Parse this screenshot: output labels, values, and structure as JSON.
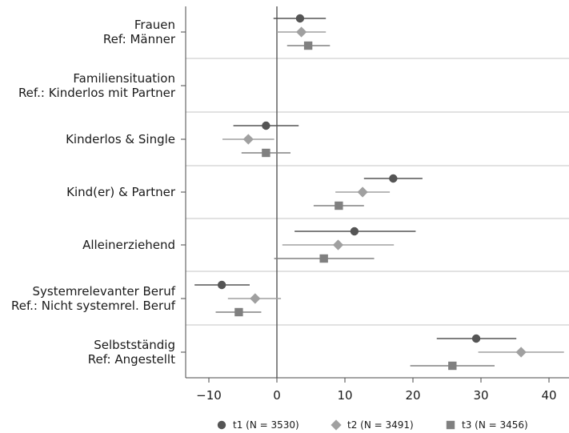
{
  "chart_data": {
    "type": "coefficient-plot",
    "title": "",
    "xlabel": "",
    "ylabel": "",
    "xlim": [
      -13,
      43
    ],
    "xticks": [
      -10,
      0,
      10,
      20,
      30,
      40
    ],
    "xtick_labels": [
      "−10",
      "0",
      "10",
      "20",
      "30",
      "40"
    ],
    "zero_line": 0,
    "grid": false,
    "legend_position": "bottom",
    "series": [
      {
        "name": "t1 (N = 3530)",
        "marker": "circle",
        "color": "#555555"
      },
      {
        "name": "t2 (N = 3491)",
        "marker": "diamond",
        "color": "#a0a0a0"
      },
      {
        "name": "t3 (N = 3456)",
        "marker": "square",
        "color": "#808080"
      }
    ],
    "groups": [
      {
        "lines": [
          "Frauen",
          "Ref: Männer"
        ],
        "estimates": [
          {
            "series": 0,
            "value": 3.4,
            "ci": [
              -0.5,
              7.2
            ]
          },
          {
            "series": 1,
            "value": 3.6,
            "ci": [
              0.0,
              7.2
            ]
          },
          {
            "series": 2,
            "value": 4.6,
            "ci": [
              1.5,
              7.8
            ]
          }
        ]
      },
      {
        "lines": [
          "Familiensituation",
          "Ref.: Kinderlos mit Partner"
        ],
        "estimates": []
      },
      {
        "lines": [
          "Kinderlos & Single"
        ],
        "estimates": [
          {
            "series": 0,
            "value": -1.6,
            "ci": [
              -6.4,
              3.2
            ]
          },
          {
            "series": 1,
            "value": -4.2,
            "ci": [
              -8.0,
              -0.4
            ]
          },
          {
            "series": 2,
            "value": -1.6,
            "ci": [
              -5.2,
              2.0
            ]
          }
        ]
      },
      {
        "lines": [
          "Kind(er) & Partner"
        ],
        "estimates": [
          {
            "series": 0,
            "value": 17.1,
            "ci": [
              12.8,
              21.4
            ]
          },
          {
            "series": 1,
            "value": 12.6,
            "ci": [
              8.6,
              16.6
            ]
          },
          {
            "series": 2,
            "value": 9.1,
            "ci": [
              5.4,
              12.8
            ]
          }
        ]
      },
      {
        "lines": [
          "Alleinerziehend"
        ],
        "estimates": [
          {
            "series": 0,
            "value": 11.4,
            "ci": [
              2.6,
              20.4
            ]
          },
          {
            "series": 1,
            "value": 9.0,
            "ci": [
              0.8,
              17.2
            ]
          },
          {
            "series": 2,
            "value": 6.9,
            "ci": [
              -0.4,
              14.3
            ]
          }
        ]
      },
      {
        "lines": [
          "Systemrelevanter Beruf",
          "Ref.: Nicht systemrel. Beruf"
        ],
        "estimates": [
          {
            "series": 0,
            "value": -8.1,
            "ci": [
              -12.1,
              -4.0
            ]
          },
          {
            "series": 1,
            "value": -3.2,
            "ci": [
              -7.2,
              0.6
            ]
          },
          {
            "series": 2,
            "value": -5.6,
            "ci": [
              -9.0,
              -2.3
            ]
          }
        ]
      },
      {
        "lines": [
          "Selbstständig",
          "Ref: Angestellt"
        ],
        "estimates": [
          {
            "series": 0,
            "value": 29.3,
            "ci": [
              23.5,
              35.2
            ]
          },
          {
            "series": 1,
            "value": 35.9,
            "ci": [
              29.6,
              42.2
            ]
          },
          {
            "series": 2,
            "value": 25.8,
            "ci": [
              19.6,
              32.0
            ]
          }
        ]
      }
    ]
  }
}
